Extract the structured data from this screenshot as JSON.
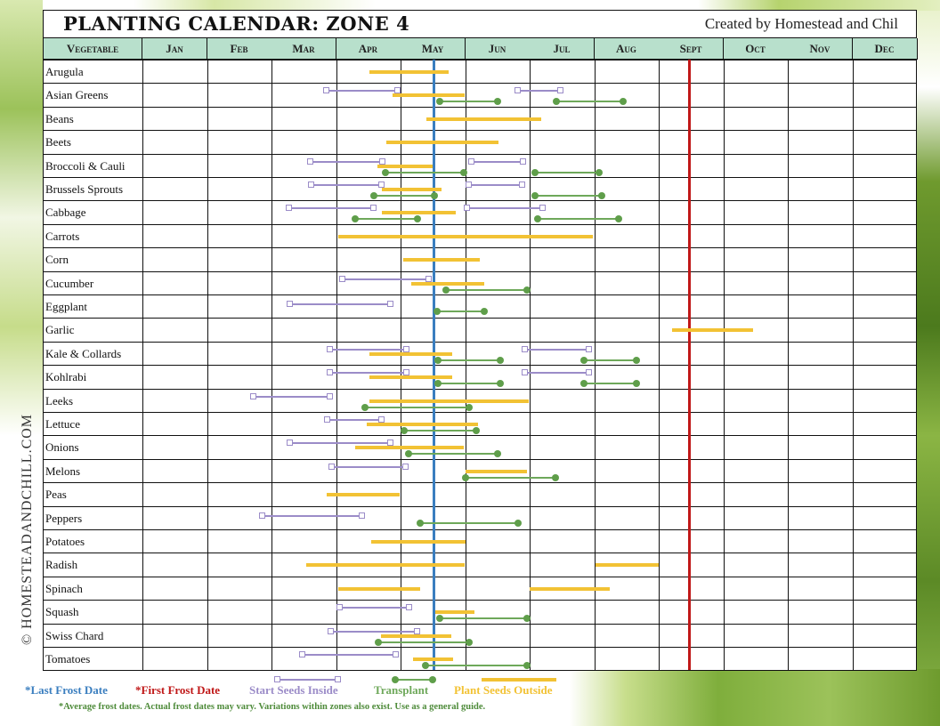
{
  "header": {
    "title": "PLANTING CALENDAR: ZONE 4",
    "credit": "Created by Homestead and Chil"
  },
  "side_text": "© HOMESTEADANDCHILL.COM",
  "columns": [
    "Vegetable",
    "Jan",
    "Feb",
    "Mar",
    "Apr",
    "May",
    "Jun",
    "Jul",
    "Aug",
    "Sept",
    "Oct",
    "Nov",
    "Dec"
  ],
  "vegetables": [
    "Arugula",
    "Asian Greens",
    "Beans",
    "Beets",
    "Broccoli & Cauli",
    "Brussels Sprouts",
    "Cabbage",
    "Carrots",
    "Corn",
    "Cucumber",
    "Eggplant",
    "Garlic",
    "Kale & Collards",
    "Kohlrabi",
    "Leeks",
    "Lettuce",
    "Onions",
    "Melons",
    "Peas",
    "Peppers",
    "Potatoes",
    "Radish",
    "Spinach",
    "Squash",
    "Swiss Chard",
    "Tomatoes"
  ],
  "legend": {
    "last_frost": "*Last Frost Date",
    "first_frost": "*First Frost Date",
    "start_inside": "Start Seeds Inside",
    "transplant": "Transplant",
    "plant_outside": "Plant Seeds Outside",
    "note": "*Average frost dates. Actual frost dates may vary. Variations within zones also exist. Use as a general guide."
  },
  "colors": {
    "last_frost": "#3a7ebf",
    "first_frost": "#c01818",
    "start_inside": "#9b8cc8",
    "transplant": "#6ea85a",
    "plant_outside": "#f2c234",
    "header_bg": "#b8e0cc"
  },
  "chart_data": {
    "type": "gantt",
    "title": "Planting Calendar: Zone 4",
    "months": [
      "Jan",
      "Feb",
      "Mar",
      "Apr",
      "May",
      "Jun",
      "Jul",
      "Aug",
      "Sept",
      "Oct",
      "Nov",
      "Dec"
    ],
    "month_scale_note": "values are month positions: 1.0 = start of Jan, 13.0 = end of Dec",
    "last_frost_date": 5.52,
    "first_frost_date": 9.48,
    "series_types": [
      "start_inside",
      "transplant",
      "plant_outside"
    ],
    "rows": [
      {
        "veg": "Arugula",
        "plant_outside": [
          [
            4.52,
            5.74
          ]
        ]
      },
      {
        "veg": "Asian Greens",
        "start_inside": [
          [
            3.85,
            4.95
          ],
          [
            6.82,
            7.48
          ]
        ],
        "transplant": [
          [
            5.6,
            6.5
          ],
          [
            7.42,
            8.45
          ]
        ],
        "plant_outside": [
          [
            4.88,
            6.0
          ]
        ]
      },
      {
        "veg": "Beans",
        "plant_outside": [
          [
            5.4,
            7.18
          ]
        ]
      },
      {
        "veg": "Beets",
        "plant_outside": [
          [
            4.78,
            6.52
          ]
        ]
      },
      {
        "veg": "Broccoli & Cauli",
        "start_inside": [
          [
            3.6,
            4.72
          ],
          [
            6.1,
            6.9
          ]
        ],
        "transplant": [
          [
            4.77,
            5.98
          ],
          [
            7.08,
            8.08
          ]
        ],
        "plant_outside": [
          [
            4.64,
            5.5
          ]
        ]
      },
      {
        "veg": "Brussels Sprouts",
        "start_inside": [
          [
            3.62,
            4.71
          ],
          [
            6.06,
            6.88
          ]
        ],
        "transplant": [
          [
            4.59,
            5.52
          ],
          [
            7.08,
            8.12
          ]
        ],
        "plant_outside": [
          [
            4.71,
            5.63
          ]
        ]
      },
      {
        "veg": "Cabbage",
        "start_inside": [
          [
            3.27,
            4.58
          ],
          [
            6.03,
            7.2
          ]
        ],
        "transplant": [
          [
            4.3,
            5.26
          ],
          [
            7.12,
            8.38
          ]
        ],
        "plant_outside": [
          [
            4.71,
            5.85
          ]
        ]
      },
      {
        "veg": "Carrots",
        "plant_outside": [
          [
            4.03,
            7.98
          ]
        ]
      },
      {
        "veg": "Corn",
        "plant_outside": [
          [
            5.04,
            6.23
          ]
        ]
      },
      {
        "veg": "Cucumber",
        "start_inside": [
          [
            4.1,
            5.44
          ]
        ],
        "transplant": [
          [
            5.7,
            6.96
          ]
        ],
        "plant_outside": [
          [
            5.16,
            6.29
          ]
        ]
      },
      {
        "veg": "Eggplant",
        "start_inside": [
          [
            3.28,
            4.84
          ]
        ],
        "transplant": [
          [
            5.56,
            6.3
          ]
        ]
      },
      {
        "veg": "Garlic",
        "plant_outside": [
          [
            9.2,
            10.46
          ]
        ]
      },
      {
        "veg": "Kale & Collards",
        "start_inside": [
          [
            3.9,
            5.09
          ],
          [
            6.92,
            7.92
          ]
        ],
        "transplant": [
          [
            5.58,
            6.54
          ],
          [
            7.84,
            8.66
          ]
        ],
        "plant_outside": [
          [
            4.52,
            5.8
          ]
        ]
      },
      {
        "veg": "Kohlrabi",
        "start_inside": [
          [
            3.9,
            5.09
          ],
          [
            6.92,
            7.92
          ]
        ],
        "transplant": [
          [
            5.58,
            6.54
          ],
          [
            7.84,
            8.66
          ]
        ],
        "plant_outside": [
          [
            4.52,
            5.8
          ]
        ]
      },
      {
        "veg": "Leeks",
        "start_inside": [
          [
            2.72,
            3.9
          ]
        ],
        "transplant": [
          [
            4.45,
            6.06
          ]
        ],
        "plant_outside": [
          [
            4.52,
            6.98
          ]
        ]
      },
      {
        "veg": "Lettuce",
        "start_inside": [
          [
            3.86,
            4.7
          ]
        ],
        "transplant": [
          [
            5.05,
            6.17
          ]
        ],
        "plant_outside": [
          [
            4.48,
            6.2
          ]
        ]
      },
      {
        "veg": "Onions",
        "start_inside": [
          [
            3.28,
            4.84
          ]
        ],
        "transplant": [
          [
            5.13,
            6.5
          ]
        ],
        "plant_outside": [
          [
            4.29,
            5.98
          ]
        ]
      },
      {
        "veg": "Melons",
        "start_inside": [
          [
            3.93,
            5.07
          ]
        ],
        "transplant": [
          [
            6.0,
            7.4
          ]
        ],
        "plant_outside": [
          [
            6.0,
            6.96
          ]
        ]
      },
      {
        "veg": "Peas",
        "plant_outside": [
          [
            3.86,
            4.98
          ]
        ]
      },
      {
        "veg": "Peppers",
        "start_inside": [
          [
            2.86,
            4.4
          ]
        ],
        "transplant": [
          [
            5.3,
            6.82
          ]
        ],
        "plant_outside": []
      },
      {
        "veg": "Potatoes",
        "plant_outside": [
          [
            4.55,
            6.0
          ]
        ]
      },
      {
        "veg": "Radish",
        "plant_outside": [
          [
            3.54,
            6.0
          ],
          [
            8.02,
            9.0
          ]
        ]
      },
      {
        "veg": "Spinach",
        "plant_outside": [
          [
            4.04,
            5.3
          ],
          [
            7.0,
            8.24
          ]
        ]
      },
      {
        "veg": "Squash",
        "start_inside": [
          [
            4.06,
            5.13
          ]
        ],
        "transplant": [
          [
            5.6,
            6.96
          ]
        ],
        "plant_outside": [
          [
            5.54,
            6.15
          ]
        ]
      },
      {
        "veg": "Swiss Chard",
        "start_inside": [
          [
            3.92,
            5.26
          ]
        ],
        "transplant": [
          [
            4.66,
            6.06
          ]
        ],
        "plant_outside": [
          [
            4.7,
            5.78
          ]
        ]
      },
      {
        "veg": "Tomatoes",
        "start_inside": [
          [
            3.48,
            4.92
          ]
        ],
        "transplant": [
          [
            5.38,
            6.96
          ]
        ],
        "plant_outside": [
          [
            5.19,
            5.82
          ]
        ]
      }
    ],
    "legend": [
      "Last Frost Date",
      "First Frost Date",
      "Start Seeds Inside",
      "Transplant",
      "Plant Seeds Outside"
    ]
  }
}
